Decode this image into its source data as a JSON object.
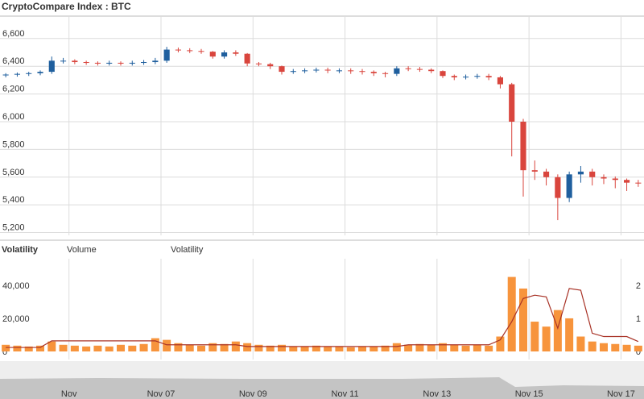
{
  "chart_data": [
    {
      "type": "candlestick",
      "title": "CryptoCompare Index : BTC",
      "x": [
        3.625,
        3.875,
        4.125,
        4.375,
        4.625,
        4.875,
        5.125,
        5.375,
        5.625,
        5.875,
        6.125,
        6.375,
        6.625,
        6.875,
        7.125,
        7.375,
        7.625,
        7.875,
        8.125,
        8.375,
        8.625,
        8.875,
        9.125,
        9.375,
        9.625,
        9.875,
        10.125,
        10.375,
        10.625,
        10.875,
        11.125,
        11.375,
        11.625,
        11.875,
        12.125,
        12.375,
        12.625,
        12.875,
        13.125,
        13.375,
        13.625,
        13.875,
        14.125,
        14.375,
        14.625,
        14.875,
        15.125,
        15.375,
        15.625,
        15.875,
        16.125,
        16.375,
        16.625,
        16.875,
        17.125,
        17.375
      ],
      "open": [
        6335,
        6340,
        6345,
        6350,
        6360,
        6440,
        6440,
        6430,
        6425,
        6420,
        6425,
        6420,
        6425,
        6430,
        6440,
        6520,
        6515,
        6510,
        6505,
        6470,
        6500,
        6490,
        6420,
        6415,
        6400,
        6360,
        6365,
        6370,
        6375,
        6370,
        6370,
        6365,
        6360,
        6350,
        6345,
        6385,
        6380,
        6375,
        6365,
        6330,
        6320,
        6325,
        6330,
        6320,
        6270,
        6000,
        5650,
        5640,
        5600,
        5450,
        5620,
        5640,
        5600,
        5590,
        5580,
        5560
      ],
      "high": [
        6350,
        6355,
        6360,
        6370,
        6470,
        6460,
        6450,
        6440,
        6435,
        6440,
        6435,
        6440,
        6445,
        6460,
        6540,
        6535,
        6530,
        6525,
        6510,
        6515,
        6515,
        6495,
        6430,
        6425,
        6405,
        6380,
        6385,
        6390,
        6390,
        6385,
        6385,
        6380,
        6370,
        6360,
        6400,
        6400,
        6395,
        6385,
        6370,
        6340,
        6340,
        6345,
        6345,
        6330,
        6280,
        6020,
        5720,
        5660,
        5620,
        5640,
        5680,
        5660,
        5620,
        5605,
        5590,
        5580
      ],
      "low": [
        6320,
        6325,
        6330,
        6335,
        6345,
        6420,
        6415,
        6410,
        6405,
        6405,
        6405,
        6405,
        6410,
        6415,
        6425,
        6500,
        6495,
        6490,
        6455,
        6455,
        6475,
        6400,
        6400,
        6380,
        6340,
        6345,
        6350,
        6355,
        6350,
        6350,
        6345,
        6340,
        6330,
        6320,
        6330,
        6365,
        6360,
        6350,
        6315,
        6300,
        6305,
        6310,
        6300,
        6240,
        5750,
        5460,
        5580,
        5540,
        5290,
        5420,
        5560,
        5540,
        5550,
        5520,
        5500,
        5530
      ],
      "close": [
        6340,
        6345,
        6350,
        6360,
        6440,
        6440,
        6430,
        6425,
        6420,
        6425,
        6420,
        6425,
        6430,
        6440,
        6520,
        6515,
        6510,
        6505,
        6470,
        6500,
        6490,
        6420,
        6415,
        6400,
        6360,
        6365,
        6370,
        6375,
        6370,
        6370,
        6365,
        6360,
        6350,
        6345,
        6385,
        6380,
        6375,
        6365,
        6330,
        6320,
        6325,
        6330,
        6320,
        6270,
        6000,
        5650,
        5640,
        5600,
        5450,
        5620,
        5640,
        5600,
        5590,
        5580,
        5560,
        5555
      ],
      "up_color": "#1f5f9e",
      "down_color": "#d9453d",
      "xlim": [
        3.5,
        17.5
      ],
      "xticks": [
        {
          "value": 5,
          "label": "Nov"
        },
        {
          "value": 7,
          "label": "Nov 07"
        },
        {
          "value": 9,
          "label": "Nov 09"
        },
        {
          "value": 11,
          "label": "Nov 11"
        },
        {
          "value": 13,
          "label": "Nov 13"
        },
        {
          "value": 15,
          "label": "Nov 15"
        },
        {
          "value": 17,
          "label": "Nov 17"
        }
      ],
      "ylim": [
        5180,
        6750
      ],
      "yticks": [
        {
          "value": 5200,
          "label": "5,200"
        },
        {
          "value": 5400,
          "label": "5,400"
        },
        {
          "value": 5600,
          "label": "5,600"
        },
        {
          "value": 5800,
          "label": "5,800"
        },
        {
          "value": 6000,
          "label": "6,000"
        },
        {
          "value": 6200,
          "label": "6,200"
        },
        {
          "value": 6400,
          "label": "6,400"
        },
        {
          "value": 6600,
          "label": "6,600"
        }
      ],
      "grid": true
    },
    {
      "type": "bar-line",
      "title": "Volatility",
      "series": [
        {
          "name": "Volume",
          "type": "bar",
          "color": "#f7943c",
          "values": [
            4000,
            3500,
            3000,
            3500,
            6000,
            4000,
            3500,
            3000,
            3500,
            3000,
            4000,
            3500,
            4500,
            8000,
            7000,
            5000,
            4000,
            3500,
            5000,
            4500,
            6000,
            5000,
            4000,
            3500,
            4000,
            3000,
            3000,
            3500,
            3000,
            3000,
            2500,
            3000,
            3000,
            3500,
            5000,
            4000,
            4500,
            4000,
            5000,
            4000,
            3500,
            4000,
            3500,
            9000,
            45000,
            38000,
            18000,
            15000,
            25000,
            20000,
            9000,
            6000,
            5000,
            4500,
            4000,
            3500
          ]
        },
        {
          "name": "Volatility",
          "type": "line",
          "color": "#a83226",
          "axis": "y2",
          "values": [
            0.12,
            0.12,
            0.12,
            0.12,
            0.32,
            0.32,
            0.32,
            0.32,
            0.32,
            0.32,
            0.32,
            0.32,
            0.32,
            0.32,
            0.2,
            0.2,
            0.2,
            0.2,
            0.2,
            0.2,
            0.2,
            0.15,
            0.15,
            0.15,
            0.15,
            0.15,
            0.15,
            0.15,
            0.15,
            0.15,
            0.15,
            0.15,
            0.15,
            0.15,
            0.15,
            0.2,
            0.2,
            0.2,
            0.2,
            0.2,
            0.2,
            0.2,
            0.2,
            0.35,
            0.9,
            1.6,
            1.7,
            1.65,
            0.7,
            1.9,
            1.85,
            0.55,
            0.45,
            0.45,
            0.45,
            0.3
          ]
        }
      ],
      "ylim": [
        0,
        56000
      ],
      "yticks": [
        0,
        {
          "value": 20000,
          "label": "20,000"
        },
        {
          "value": 40000,
          "label": "40,000"
        }
      ],
      "y2lim": [
        0,
        2.8
      ],
      "y2ticks": [
        0,
        1,
        2
      ]
    }
  ]
}
